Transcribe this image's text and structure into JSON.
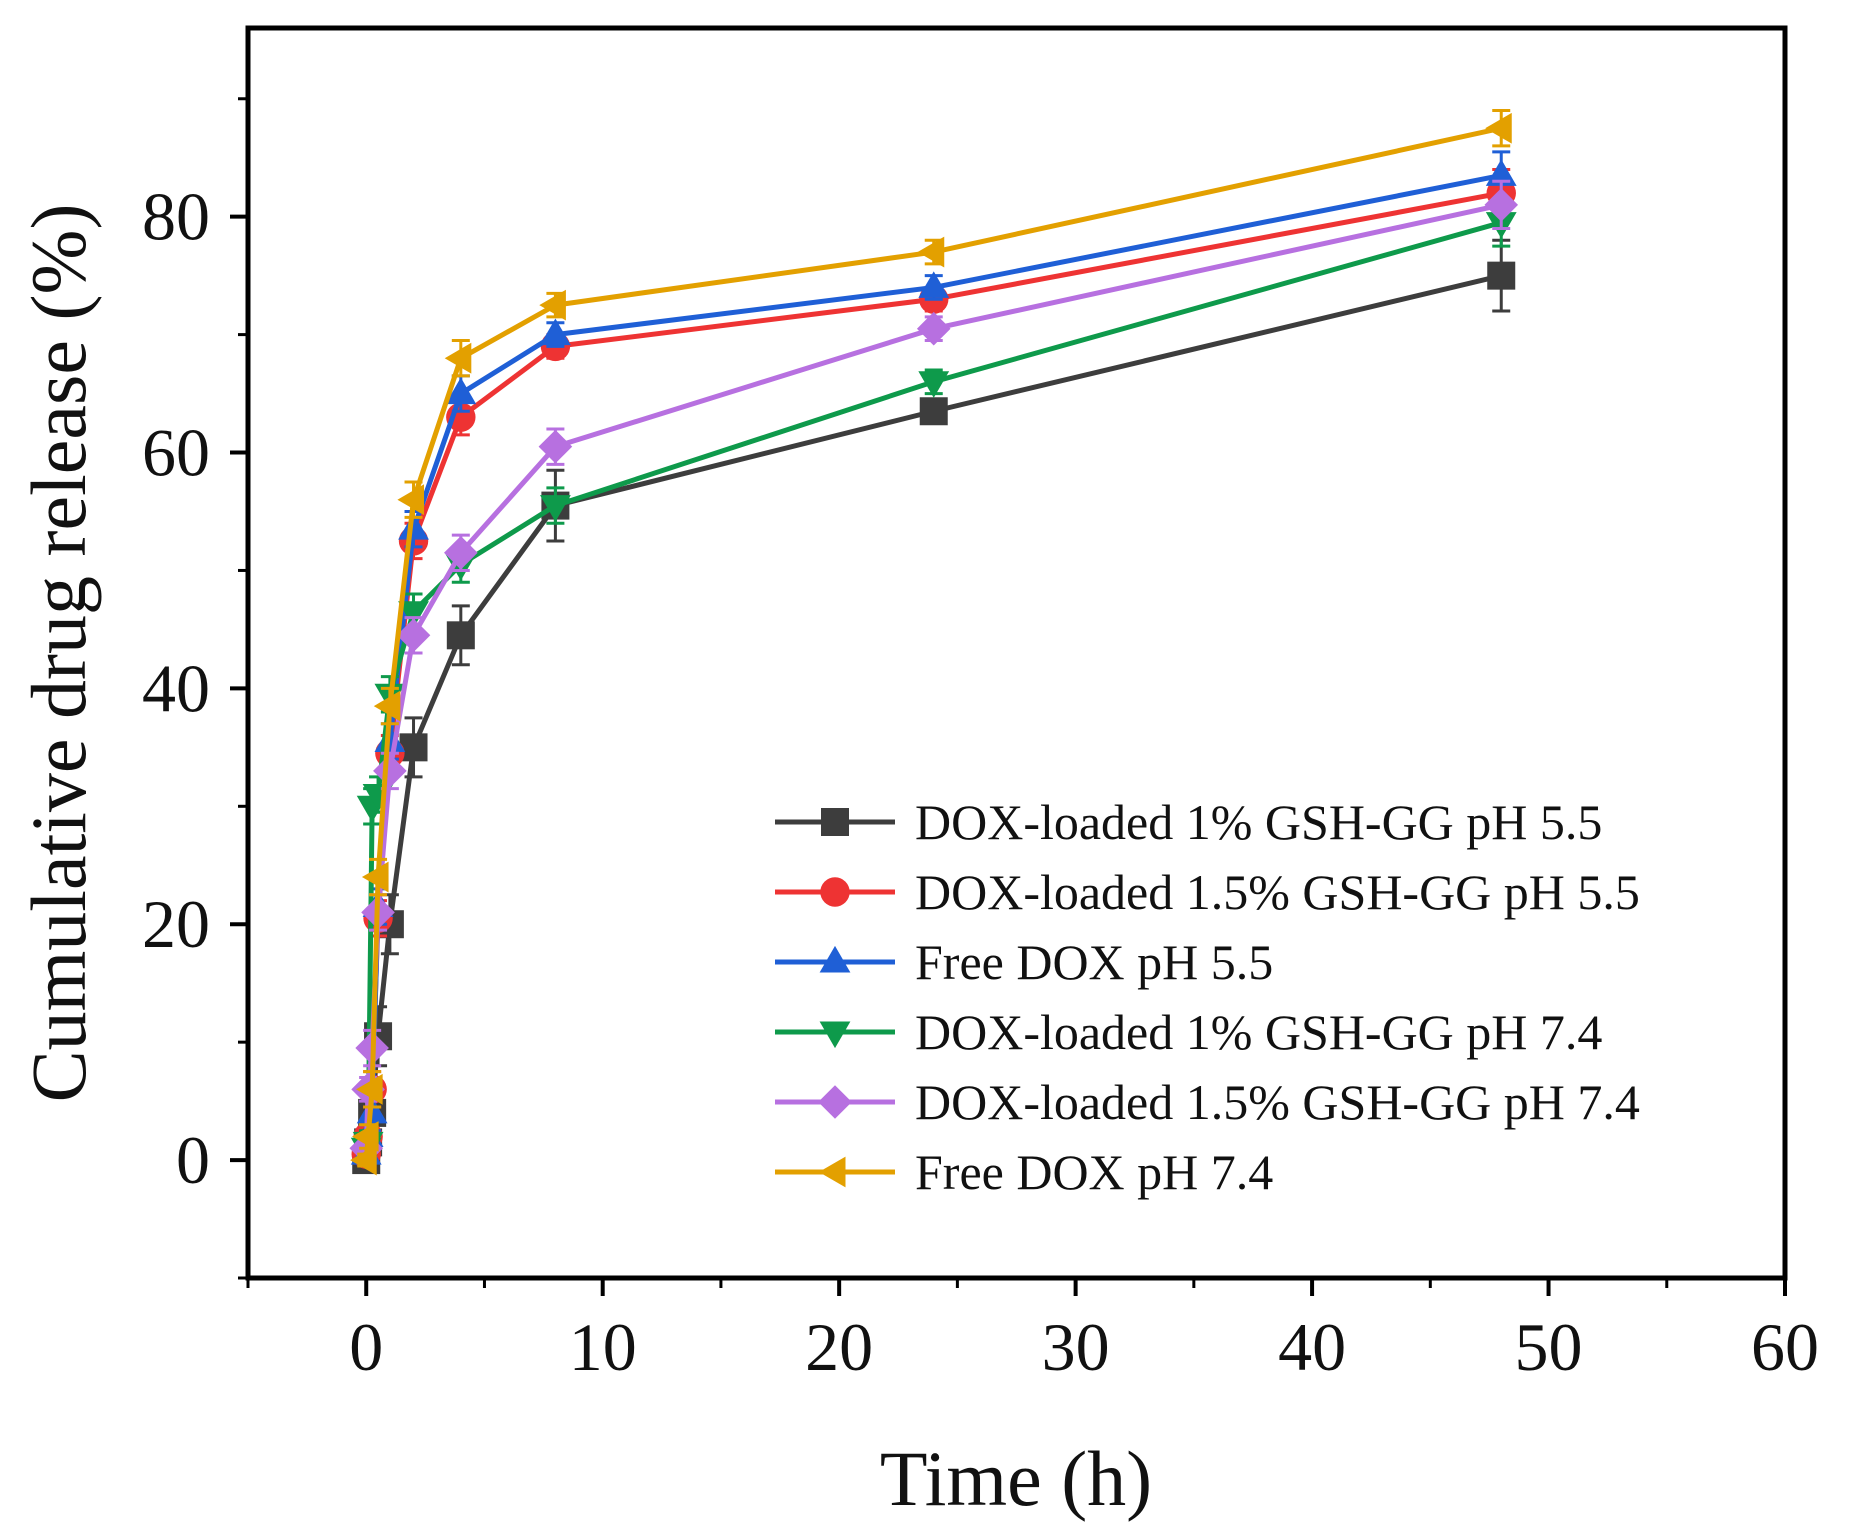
{
  "chart_data": {
    "type": "line",
    "title": "",
    "xlabel": "Time (h)",
    "ylabel": "Cumulative drug release (%)",
    "xlim": [
      -5,
      60
    ],
    "ylim": [
      -10,
      96
    ],
    "x_ticks": [
      0,
      10,
      20,
      30,
      40,
      50,
      60
    ],
    "y_ticks": [
      0,
      20,
      40,
      60,
      80
    ],
    "grid": false,
    "legend_position": "bottom-right",
    "x": [
      0,
      0.08,
      0.25,
      0.5,
      1,
      2,
      4,
      8,
      24,
      48
    ],
    "series": [
      {
        "name": "DOX-loaded 1% GSH-GG pH 5.5",
        "color": "#3d3d3d",
        "marker": "square",
        "values": [
          0,
          1.5,
          4,
          10.5,
          20,
          35,
          44.5,
          55.5,
          63.5,
          75
        ],
        "errors": [
          0.5,
          1,
          1.5,
          2.5,
          2.5,
          2.5,
          2.5,
          3,
          1,
          3
        ]
      },
      {
        "name": "DOX-loaded 1.5% GSH-GG pH 5.5",
        "color": "#ee3333",
        "marker": "circle",
        "values": [
          0.5,
          2,
          6,
          20.5,
          34.5,
          52.5,
          63,
          69,
          73,
          82
        ],
        "errors": [
          0.5,
          1,
          1.5,
          1.5,
          1.5,
          1.5,
          1.5,
          1,
          1,
          2
        ]
      },
      {
        "name": "Free DOX pH 5.5",
        "color": "#1f5fd6",
        "marker": "triangle-up",
        "values": [
          0.5,
          2,
          4,
          21.5,
          35.5,
          53.5,
          65,
          70,
          74,
          83.5
        ],
        "errors": [
          0.5,
          1,
          1.5,
          1.5,
          1.5,
          1.5,
          1.5,
          1,
          1,
          2
        ]
      },
      {
        "name": "DOX-loaded 1% GSH-GG pH 7.4",
        "color": "#0e9a4b",
        "marker": "triangle-down",
        "values": [
          1,
          1.5,
          30,
          31,
          39.5,
          46.5,
          50.5,
          55.5,
          66,
          79.5
        ],
        "errors": [
          0.5,
          1,
          1.5,
          1.5,
          1.5,
          1.5,
          1.5,
          1.5,
          1,
          2
        ]
      },
      {
        "name": "DOX-loaded 1.5% GSH-GG pH 7.4",
        "color": "#b770e0",
        "marker": "diamond",
        "values": [
          1,
          6,
          9.5,
          21,
          33,
          44.5,
          51.5,
          60.5,
          70.5,
          81
        ],
        "errors": [
          0.5,
          1,
          1.5,
          1.5,
          1.5,
          1.5,
          1.5,
          1.5,
          1,
          2
        ]
      },
      {
        "name": "Free DOX pH 7.4",
        "color": "#e3a000",
        "marker": "triangle-left",
        "values": [
          0,
          2,
          6,
          24,
          38.5,
          56,
          68,
          72.5,
          77,
          87.5
        ],
        "errors": [
          0.5,
          1,
          1.5,
          1.5,
          1.5,
          1.5,
          1.5,
          1,
          1,
          1.5
        ]
      }
    ]
  }
}
